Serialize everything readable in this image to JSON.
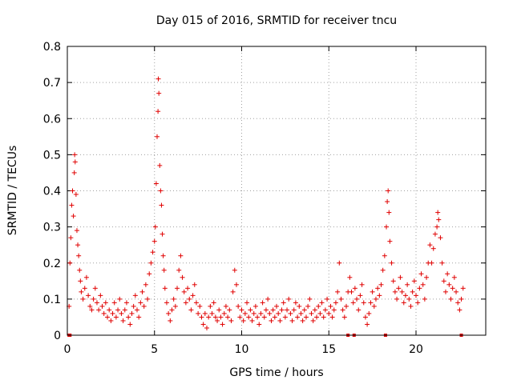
{
  "chart_data": {
    "type": "scatter",
    "title": "Day 015 of 2016, SRMTID for receiver tncu",
    "xlabel": "GPS time / hours",
    "ylabel": "SRMTID / TECUs",
    "xlim": [
      0,
      24
    ],
    "ylim": [
      0,
      0.8
    ],
    "xticks": [
      0,
      5,
      10,
      15,
      20
    ],
    "yticks": [
      0,
      0.1,
      0.2,
      0.3,
      0.4,
      0.5,
      0.6,
      0.7,
      0.8
    ],
    "xtick_labels": [
      "0",
      "5",
      "10",
      "15",
      "20"
    ],
    "ytick_labels": [
      "0",
      "0.1",
      "0.2",
      "0.3",
      "0.4",
      "0.5",
      "0.6",
      "0.7",
      "0.8"
    ],
    "grid": true,
    "marker": "+",
    "color": "#e00000",
    "zero_value_times": [
      0.1,
      0.15,
      16.1,
      16.45,
      18.25,
      22.6
    ],
    "series": [
      {
        "name": "SRMTID",
        "points": [
          [
            0.1,
            0.08
          ],
          [
            0.15,
            0.2
          ],
          [
            0.2,
            0.27
          ],
          [
            0.25,
            0.36
          ],
          [
            0.3,
            0.4
          ],
          [
            0.35,
            0.33
          ],
          [
            0.4,
            0.45
          ],
          [
            0.42,
            0.5
          ],
          [
            0.45,
            0.48
          ],
          [
            0.5,
            0.39
          ],
          [
            0.55,
            0.29
          ],
          [
            0.6,
            0.25
          ],
          [
            0.65,
            0.22
          ],
          [
            0.7,
            0.18
          ],
          [
            0.75,
            0.15
          ],
          [
            0.8,
            0.12
          ],
          [
            0.9,
            0.1
          ],
          [
            1.0,
            0.13
          ],
          [
            1.1,
            0.16
          ],
          [
            1.2,
            0.11
          ],
          [
            1.3,
            0.08
          ],
          [
            1.4,
            0.07
          ],
          [
            1.5,
            0.1
          ],
          [
            1.6,
            0.13
          ],
          [
            1.7,
            0.09
          ],
          [
            1.8,
            0.07
          ],
          [
            1.9,
            0.11
          ],
          [
            2.0,
            0.08
          ],
          [
            2.1,
            0.06
          ],
          [
            2.2,
            0.09
          ],
          [
            2.3,
            0.05
          ],
          [
            2.4,
            0.07
          ],
          [
            2.5,
            0.04
          ],
          [
            2.6,
            0.06
          ],
          [
            2.7,
            0.09
          ],
          [
            2.8,
            0.05
          ],
          [
            2.9,
            0.07
          ],
          [
            3.0,
            0.1
          ],
          [
            3.1,
            0.06
          ],
          [
            3.2,
            0.04
          ],
          [
            3.3,
            0.07
          ],
          [
            3.4,
            0.09
          ],
          [
            3.5,
            0.05
          ],
          [
            3.6,
            0.03
          ],
          [
            3.7,
            0.06
          ],
          [
            3.8,
            0.08
          ],
          [
            3.9,
            0.11
          ],
          [
            4.0,
            0.07
          ],
          [
            4.1,
            0.05
          ],
          [
            4.2,
            0.09
          ],
          [
            4.3,
            0.12
          ],
          [
            4.4,
            0.08
          ],
          [
            4.5,
            0.14
          ],
          [
            4.6,
            0.1
          ],
          [
            4.7,
            0.17
          ],
          [
            4.8,
            0.2
          ],
          [
            4.9,
            0.23
          ],
          [
            5.0,
            0.26
          ],
          [
            5.05,
            0.3
          ],
          [
            5.1,
            0.42
          ],
          [
            5.15,
            0.55
          ],
          [
            5.2,
            0.62
          ],
          [
            5.22,
            0.71
          ],
          [
            5.25,
            0.67
          ],
          [
            5.3,
            0.47
          ],
          [
            5.35,
            0.4
          ],
          [
            5.4,
            0.36
          ],
          [
            5.45,
            0.28
          ],
          [
            5.5,
            0.22
          ],
          [
            5.55,
            0.18
          ],
          [
            5.6,
            0.13
          ],
          [
            5.7,
            0.09
          ],
          [
            5.8,
            0.06
          ],
          [
            5.9,
            0.04
          ],
          [
            6.0,
            0.07
          ],
          [
            6.1,
            0.1
          ],
          [
            6.2,
            0.08
          ],
          [
            6.3,
            0.13
          ],
          [
            6.4,
            0.18
          ],
          [
            6.5,
            0.22
          ],
          [
            6.6,
            0.16
          ],
          [
            6.7,
            0.12
          ],
          [
            6.8,
            0.09
          ],
          [
            6.9,
            0.13
          ],
          [
            7.0,
            0.1
          ],
          [
            7.1,
            0.07
          ],
          [
            7.2,
            0.11
          ],
          [
            7.3,
            0.14
          ],
          [
            7.4,
            0.09
          ],
          [
            7.5,
            0.06
          ],
          [
            7.6,
            0.08
          ],
          [
            7.7,
            0.05
          ],
          [
            7.8,
            0.03
          ],
          [
            7.9,
            0.06
          ],
          [
            8.0,
            0.02
          ],
          [
            8.1,
            0.05
          ],
          [
            8.2,
            0.08
          ],
          [
            8.3,
            0.06
          ],
          [
            8.4,
            0.09
          ],
          [
            8.5,
            0.05
          ],
          [
            8.6,
            0.04
          ],
          [
            8.7,
            0.07
          ],
          [
            8.8,
            0.05
          ],
          [
            8.9,
            0.03
          ],
          [
            9.0,
            0.06
          ],
          [
            9.1,
            0.08
          ],
          [
            9.2,
            0.05
          ],
          [
            9.3,
            0.07
          ],
          [
            9.4,
            0.04
          ],
          [
            9.5,
            0.12
          ],
          [
            9.6,
            0.18
          ],
          [
            9.7,
            0.14
          ],
          [
            9.8,
            0.08
          ],
          [
            9.9,
            0.05
          ],
          [
            10.0,
            0.07
          ],
          [
            10.1,
            0.04
          ],
          [
            10.2,
            0.06
          ],
          [
            10.3,
            0.09
          ],
          [
            10.4,
            0.05
          ],
          [
            10.5,
            0.07
          ],
          [
            10.6,
            0.04
          ],
          [
            10.7,
            0.06
          ],
          [
            10.8,
            0.08
          ],
          [
            10.9,
            0.05
          ],
          [
            11.0,
            0.03
          ],
          [
            11.1,
            0.06
          ],
          [
            11.2,
            0.09
          ],
          [
            11.3,
            0.05
          ],
          [
            11.4,
            0.07
          ],
          [
            11.5,
            0.1
          ],
          [
            11.6,
            0.06
          ],
          [
            11.7,
            0.04
          ],
          [
            11.8,
            0.07
          ],
          [
            11.9,
            0.05
          ],
          [
            12.0,
            0.08
          ],
          [
            12.1,
            0.06
          ],
          [
            12.2,
            0.04
          ],
          [
            12.3,
            0.07
          ],
          [
            12.4,
            0.09
          ],
          [
            12.5,
            0.05
          ],
          [
            12.6,
            0.07
          ],
          [
            12.7,
            0.1
          ],
          [
            12.8,
            0.06
          ],
          [
            12.9,
            0.04
          ],
          [
            13.0,
            0.07
          ],
          [
            13.1,
            0.09
          ],
          [
            13.2,
            0.05
          ],
          [
            13.3,
            0.08
          ],
          [
            13.4,
            0.06
          ],
          [
            13.5,
            0.04
          ],
          [
            13.6,
            0.07
          ],
          [
            13.7,
            0.05
          ],
          [
            13.8,
            0.08
          ],
          [
            13.9,
            0.1
          ],
          [
            14.0,
            0.06
          ],
          [
            14.1,
            0.04
          ],
          [
            14.2,
            0.07
          ],
          [
            14.3,
            0.05
          ],
          [
            14.4,
            0.08
          ],
          [
            14.5,
            0.06
          ],
          [
            14.6,
            0.09
          ],
          [
            14.7,
            0.05
          ],
          [
            14.8,
            0.07
          ],
          [
            14.9,
            0.1
          ],
          [
            15.0,
            0.06
          ],
          [
            15.1,
            0.08
          ],
          [
            15.2,
            0.05
          ],
          [
            15.3,
            0.07
          ],
          [
            15.4,
            0.09
          ],
          [
            15.5,
            0.12
          ],
          [
            15.6,
            0.2
          ],
          [
            15.7,
            0.1
          ],
          [
            15.8,
            0.07
          ],
          [
            15.9,
            0.05
          ],
          [
            16.0,
            0.08
          ],
          [
            16.1,
            0.12
          ],
          [
            16.2,
            0.16
          ],
          [
            16.3,
            0.12
          ],
          [
            16.4,
            0.09
          ],
          [
            16.5,
            0.13
          ],
          [
            16.6,
            0.1
          ],
          [
            16.7,
            0.07
          ],
          [
            16.8,
            0.11
          ],
          [
            16.9,
            0.14
          ],
          [
            17.0,
            0.09
          ],
          [
            17.1,
            0.05
          ],
          [
            17.2,
            0.03
          ],
          [
            17.3,
            0.06
          ],
          [
            17.4,
            0.09
          ],
          [
            17.5,
            0.12
          ],
          [
            17.6,
            0.08
          ],
          [
            17.7,
            0.1
          ],
          [
            17.8,
            0.13
          ],
          [
            17.9,
            0.11
          ],
          [
            18.0,
            0.14
          ],
          [
            18.1,
            0.18
          ],
          [
            18.2,
            0.22
          ],
          [
            18.3,
            0.3
          ],
          [
            18.35,
            0.37
          ],
          [
            18.4,
            0.4
          ],
          [
            18.45,
            0.34
          ],
          [
            18.5,
            0.26
          ],
          [
            18.6,
            0.2
          ],
          [
            18.7,
            0.15
          ],
          [
            18.8,
            0.12
          ],
          [
            18.9,
            0.1
          ],
          [
            19.0,
            0.13
          ],
          [
            19.1,
            0.16
          ],
          [
            19.2,
            0.12
          ],
          [
            19.3,
            0.09
          ],
          [
            19.4,
            0.11
          ],
          [
            19.5,
            0.14
          ],
          [
            19.6,
            0.1
          ],
          [
            19.7,
            0.08
          ],
          [
            19.8,
            0.12
          ],
          [
            19.9,
            0.15
          ],
          [
            20.0,
            0.11
          ],
          [
            20.1,
            0.09
          ],
          [
            20.2,
            0.13
          ],
          [
            20.3,
            0.17
          ],
          [
            20.4,
            0.14
          ],
          [
            20.5,
            0.1
          ],
          [
            20.6,
            0.16
          ],
          [
            20.7,
            0.2
          ],
          [
            20.8,
            0.25
          ],
          [
            20.9,
            0.2
          ],
          [
            21.0,
            0.24
          ],
          [
            21.1,
            0.28
          ],
          [
            21.2,
            0.3
          ],
          [
            21.25,
            0.34
          ],
          [
            21.3,
            0.32
          ],
          [
            21.4,
            0.27
          ],
          [
            21.5,
            0.2
          ],
          [
            21.6,
            0.15
          ],
          [
            21.7,
            0.12
          ],
          [
            21.8,
            0.17
          ],
          [
            21.9,
            0.14
          ],
          [
            22.0,
            0.1
          ],
          [
            22.1,
            0.13
          ],
          [
            22.2,
            0.16
          ],
          [
            22.3,
            0.12
          ],
          [
            22.4,
            0.09
          ],
          [
            22.5,
            0.07
          ],
          [
            22.6,
            0.1
          ],
          [
            22.7,
            0.13
          ]
        ]
      }
    ]
  }
}
